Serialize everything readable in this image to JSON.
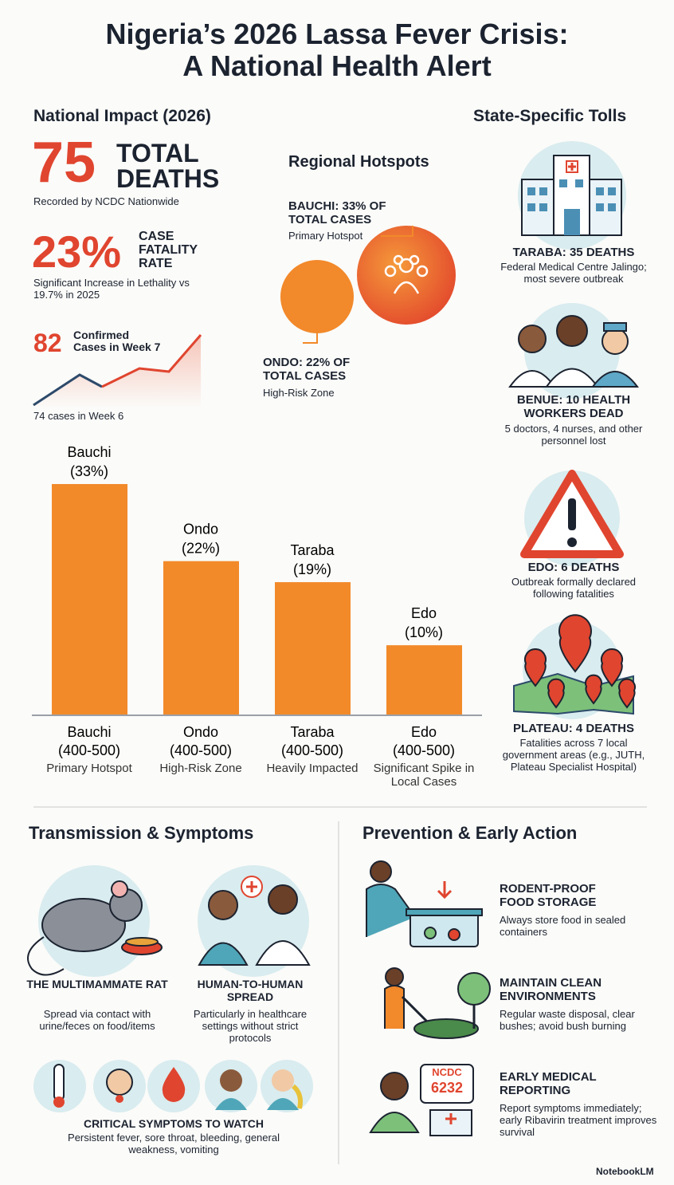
{
  "header": {
    "title_line1": "Nigeria’s 2026 Lassa Fever Crisis:",
    "title_line2": "A National Health Alert"
  },
  "national_impact": {
    "heading": "National Impact (2026)",
    "deaths_number": "75",
    "deaths_label": "TOTAL DEATHS",
    "deaths_note": "Recorded by NCDC Nationwide",
    "cfr_number": "23%",
    "cfr_label": "CASE FATALITY RATE",
    "cfr_note": "Significant Increase in Lethality vs 19.7% in 2025",
    "cases_number": "82",
    "cases_label": "Confirmed Cases in Week 7",
    "cases_note": "74 cases in Week 6"
  },
  "regional_hotspots": {
    "heading": "Regional Hotspots",
    "bauchi_title": "BAUCHI: 33% OF TOTAL CASES",
    "bauchi_note": "Primary Hotspot",
    "ondo_title": "ONDO: 22% OF TOTAL CASES",
    "ondo_note": "High-Risk Zone"
  },
  "chart_data": {
    "type": "bar",
    "categories": [
      "Bauchi",
      "Ondo",
      "Taraba",
      "Edo"
    ],
    "values": [
      33,
      22,
      19,
      10
    ],
    "value_labels": [
      "(33%)",
      "(22%)",
      "(19%)",
      "(10%)"
    ],
    "ranges": [
      "(400-500)",
      "(400-500)",
      "(400-500)",
      "(400-500)"
    ],
    "notes": [
      "Primary Hotspot",
      "High-Risk Zone",
      "Heavily Impacted",
      "Significant Spike in Local Cases"
    ],
    "color": "#f28a2a"
  },
  "state_tolls": {
    "heading": "State-Specific Tolls",
    "items": [
      {
        "title": "TARABA: 35 DEATHS",
        "text": "Federal Medical Centre Jalingo; most severe outbreak"
      },
      {
        "title": "BENUE: 10 HEALTH WORKERS DEAD",
        "text": "5 doctors, 4 nurses, and other personnel lost"
      },
      {
        "title": "EDO: 6 DEATHS",
        "text": "Outbreak formally declared following fatalities"
      },
      {
        "title": "PLATEAU: 4 DEATHS",
        "text": "Fatalities across 7 local government areas (e.g., JUTH, Plateau Specialist Hospital)"
      }
    ]
  },
  "transmission": {
    "heading": "Transmission & Symptoms",
    "items": [
      {
        "title": "THE MULTIMAMMATE RAT",
        "text": "Spread via contact with urine/feces on food/items"
      },
      {
        "title": "HUMAN-TO-HUMAN SPREAD",
        "text": "Particularly in healthcare settings without strict protocols"
      }
    ],
    "symptoms_title": "CRITICAL SYMPTOMS TO WATCH",
    "symptoms_text": "Persistent fever, sore throat, bleeding, general weakness, vomiting"
  },
  "prevention": {
    "heading": "Prevention & Early Action",
    "items": [
      {
        "title": "RODENT-PROOF FOOD STORAGE",
        "text": "Always store food in sealed containers"
      },
      {
        "title": "MAINTAIN CLEAN ENVIRONMENTS",
        "text": "Regular waste disposal, clear bushes; avoid bush burning"
      },
      {
        "title": "EARLY MEDICAL REPORTING",
        "text": "Report symptoms immediately; early Ribavirin treatment improves survival"
      }
    ],
    "sign_line1": "NCDC",
    "sign_line2": "6232"
  },
  "footer": {
    "brand": "NotebookLM"
  }
}
